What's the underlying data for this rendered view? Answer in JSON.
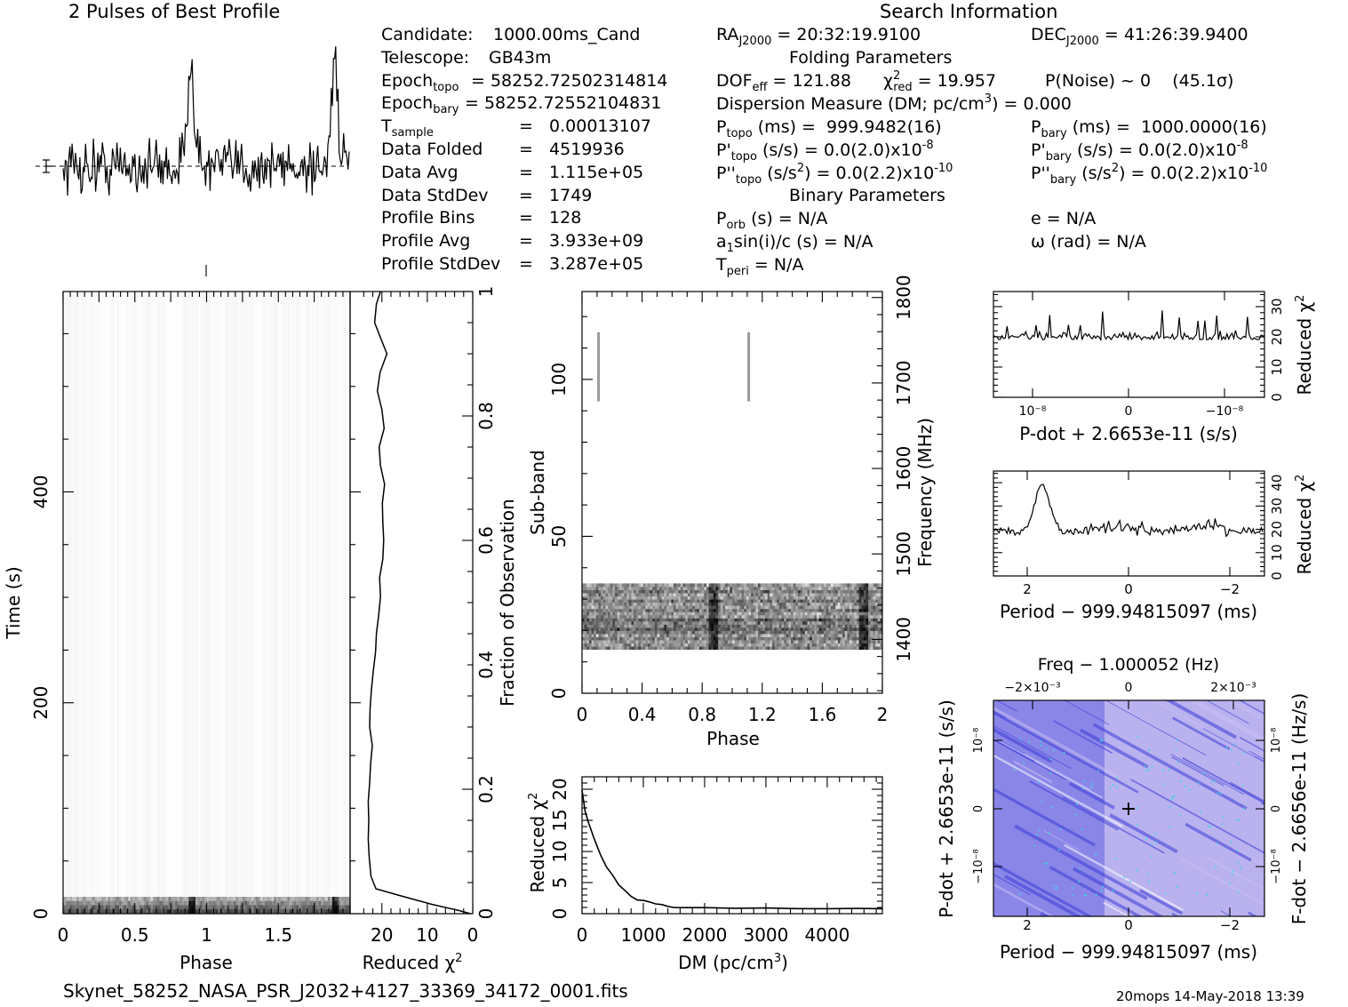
{
  "header": {
    "profile_title": "2 Pulses of Best Profile",
    "search_title": "Search Information",
    "filename": "Skynet_58252_NASA_PSR_J2032+4127_33369_34172_0001.fits",
    "footer_right": "20mops 14-May-2018 13:39"
  },
  "candidate_info": [
    {
      "label": "Candidate:",
      "value": "1000.00ms_Cand"
    },
    {
      "label": "Telescope:",
      "value": "GB43m"
    },
    {
      "label": "Epoch",
      "sub": "topo",
      "value": "= 58252.72502314814"
    },
    {
      "label": "Epoch",
      "sub": "bary",
      "value": "= 58252.72552104831"
    },
    {
      "label": "T",
      "sub": "sample",
      "value": "=   0.00013107"
    },
    {
      "label": "Data Folded",
      "value": "=   4519936"
    },
    {
      "label": "Data Avg",
      "value": "=   1.115e+05"
    },
    {
      "label": "Data StdDev",
      "value": "=   1749"
    },
    {
      "label": "Profile Bins",
      "value": "=   128"
    },
    {
      "label": "Profile Avg",
      "value": "=   3.933e+09"
    },
    {
      "label": "Profile StdDev",
      "value": "=   3.287e+05"
    }
  ],
  "search_info": {
    "ra_label": "RA",
    "ra_sub": "J2000",
    "ra_value": " = 20:32:19.9100",
    "dec_label": "DEC",
    "dec_sub": "J2000",
    "dec_value": " = 41:26:39.9400",
    "folding_title": "Folding Parameters",
    "dof_label": "DOF",
    "dof_sub": "eff",
    "dof_value": " = 121.88",
    "chi_label": "χ",
    "chi_sup": "2",
    "chi_sub": "red",
    "chi_value": " = 19.957",
    "pnoise": "P(Noise) ~ 0    (45.1σ)",
    "dm_line": "Dispersion Measure (DM; pc/cm",
    "dm_sup": "3",
    "dm_value": ") = 0.000",
    "ptopo_label": "P",
    "ptopo_sub": "topo",
    "ptopo_value": " (ms) =  999.9482(16)",
    "pbary_label": "P",
    "pbary_sub": "bary",
    "pbary_value": " (ms) =  1000.0000(16)",
    "pdtopo_label": "P'",
    "pdtopo_sub": "topo",
    "pdtopo_value": " (s/s) = 0.0(2.0)x10",
    "pdtopo_exp": "-8",
    "pdbary_label": "P'",
    "pdbary_sub": "bary",
    "pdbary_value": " (s/s) = 0.0(2.0)x10",
    "pdbary_exp": "-8",
    "pddtopo_label": "P''",
    "pddtopo_sub": "topo",
    "pddtopo_value": " (s/s",
    "pddtopo_unit_sup": "2",
    "pddtopo_value2": ") = 0.0(2.2)x10",
    "pddtopo_exp": "-10",
    "pddbary_label": "P''",
    "pddbary_sub": "bary",
    "pddbary_value": " (s/s",
    "pddbary_unit_sup": "2",
    "pddbary_value2": ") = 0.0(2.2)x10",
    "pddbary_exp": "-10",
    "binary_title": "Binary Parameters",
    "porb_label": "P",
    "porb_sub": "orb",
    "porb_value": " (s) = N/A",
    "e_line": "e = N/A",
    "a1_label": "a",
    "a1_sub": "1",
    "a1_value": "sin(i)/c (s) = N/A",
    "omega_line": "ω (rad) = N/A",
    "tperi_label": "T",
    "tperi_sub": "peri",
    "tperi_value": " = N/A"
  },
  "colors": {
    "ink": "#000000",
    "background": "#ffffff",
    "grey_dark": "#1a1a1a",
    "map_base": "#8a86e8",
    "map_light": "#c9c0f2",
    "map_dark": "#3b3dd8",
    "map_cyan": "#3fd6e0"
  },
  "chart_data": [
    {
      "id": "profile",
      "type": "line",
      "title": "2 Pulses of Best Profile",
      "xlim": [
        0,
        2
      ],
      "peaks_phase": [
        0.89,
        1.89
      ],
      "error_bar": true
    },
    {
      "id": "time_phase",
      "type": "heatmap",
      "xlabel": "Phase",
      "ylabel": "Time (s)",
      "xlim": [
        0,
        2
      ],
      "ylim": [
        0,
        590
      ],
      "x_ticks": [
        "0",
        "0.5",
        "1",
        "1.5"
      ],
      "y_ticks": [
        "0",
        "200",
        "400"
      ],
      "right_ticks": [
        "0",
        "0.2",
        "0.4",
        "0.6",
        "0.8",
        "1"
      ],
      "right_label": "Fraction of Observation",
      "bright_band_time": [
        0,
        16
      ]
    },
    {
      "id": "time_chi2",
      "type": "line",
      "xlabel": "Reduced χ²",
      "x_ticks": [
        "20",
        "10",
        "0"
      ],
      "xlim": [
        27,
        0
      ],
      "points": [
        [
          1.0,
          20.3
        ],
        [
          0.98,
          21.2
        ],
        [
          0.95,
          21.6
        ],
        [
          0.92,
          20.0
        ],
        [
          0.9,
          18.9
        ],
        [
          0.87,
          20.4
        ],
        [
          0.84,
          21.0
        ],
        [
          0.81,
          20.0
        ],
        [
          0.78,
          19.5
        ],
        [
          0.75,
          20.6
        ],
        [
          0.72,
          20.3
        ],
        [
          0.69,
          19.4
        ],
        [
          0.66,
          19.9
        ],
        [
          0.63,
          19.8
        ],
        [
          0.6,
          19.6
        ],
        [
          0.57,
          19.8
        ],
        [
          0.54,
          20.5
        ],
        [
          0.51,
          20.3
        ],
        [
          0.48,
          20.7
        ],
        [
          0.45,
          21.2
        ],
        [
          0.42,
          21.4
        ],
        [
          0.39,
          21.9
        ],
        [
          0.36,
          22.3
        ],
        [
          0.33,
          22.6
        ],
        [
          0.3,
          22.7
        ],
        [
          0.27,
          22.1
        ],
        [
          0.24,
          22.5
        ],
        [
          0.21,
          22.7
        ],
        [
          0.18,
          23.0
        ],
        [
          0.15,
          22.9
        ],
        [
          0.12,
          23.0
        ],
        [
          0.09,
          22.8
        ],
        [
          0.06,
          22.4
        ],
        [
          0.04,
          21.3
        ],
        [
          0.03,
          16.5
        ],
        [
          0.015,
          9.0
        ],
        [
          0.005,
          3.0
        ],
        [
          0.0,
          0.5
        ]
      ]
    },
    {
      "id": "subband_phase",
      "type": "heatmap",
      "xlabel": "Phase",
      "ylabel": "Sub-band",
      "right_label": "Frequency (MHz)",
      "xlim": [
        0,
        2
      ],
      "ylim": [
        0,
        128
      ],
      "x_ticks": [
        "0",
        "0.4",
        "0.8",
        "1.2",
        "1.6",
        "2"
      ],
      "y_ticks": [
        "0",
        "50",
        "100"
      ],
      "freq_ticks": [
        "1400",
        "1500",
        "1600",
        "1700",
        "1800"
      ],
      "freq_range": [
        1337,
        1807
      ],
      "active_subbands": [
        14,
        35
      ],
      "rfi_line_subbands": [
        93,
        115
      ],
      "rfi_line_phases": [
        0.11,
        1.11
      ]
    },
    {
      "id": "dm_chi2",
      "type": "line",
      "xlabel": "DM (pc/cm³)",
      "ylabel": "Reduced χ²",
      "xlim": [
        0,
        4900
      ],
      "ylim": [
        0,
        22
      ],
      "x_ticks": [
        "0",
        "1000",
        "2000",
        "3000",
        "4000"
      ],
      "y_ticks": [
        "0",
        "5",
        "10",
        "15",
        "20"
      ],
      "points": [
        [
          0,
          19.9
        ],
        [
          50,
          16.5
        ],
        [
          100,
          14.8
        ],
        [
          200,
          12.0
        ],
        [
          300,
          9.5
        ],
        [
          400,
          7.5
        ],
        [
          500,
          6.2
        ],
        [
          600,
          4.6
        ],
        [
          700,
          3.7
        ],
        [
          800,
          2.8
        ],
        [
          900,
          2.2
        ],
        [
          1000,
          2.1
        ],
        [
          1100,
          2.0
        ],
        [
          1200,
          1.8
        ],
        [
          1300,
          1.5
        ],
        [
          1400,
          1.2
        ],
        [
          1500,
          1.0
        ],
        [
          1700,
          1.0
        ],
        [
          2000,
          0.95
        ],
        [
          2500,
          0.9
        ],
        [
          3000,
          0.85
        ],
        [
          3500,
          0.85
        ],
        [
          4000,
          0.8
        ],
        [
          4500,
          0.85
        ],
        [
          4900,
          0.8
        ]
      ]
    },
    {
      "id": "pdot_chi2",
      "type": "line",
      "xlabel": "P-dot + 2.6653e-11 (s/s)",
      "ylabel": "Reduced χ²",
      "ylim": [
        0,
        35
      ],
      "x_ticks": [
        "10⁻⁸",
        "0",
        "−10⁻⁸"
      ],
      "y_ticks": [
        "0",
        "10",
        "20",
        "30"
      ],
      "baseline": 20
    },
    {
      "id": "period_chi2",
      "type": "line",
      "xlabel": "Period − 999.94815097 (ms)",
      "ylabel": "Reduced χ²",
      "ylim": [
        0,
        45
      ],
      "x_ticks": [
        "2",
        "0",
        "−2"
      ],
      "y_ticks": [
        "0",
        "10",
        "20",
        "30",
        "40"
      ],
      "peak_x": 1.7,
      "peak_value": 42
    },
    {
      "id": "period_pdot_map",
      "type": "heatmap",
      "title": "Freq − 1.000052 (Hz)",
      "xlabel": "Period − 999.94815097 (ms)",
      "ylabel": "P-dot + 2.6653e-11 (s/s)",
      "right_label": "F-dot − 2.6656e-11 (Hz/s)",
      "x_ticks": [
        "2",
        "0",
        "−2"
      ],
      "top_ticks": [
        "−2×10⁻³",
        "0",
        "2×10⁻³"
      ],
      "y_ticks": [
        "10⁻⁸",
        "0",
        "−10⁻⁸"
      ],
      "right_ticks": [
        "−10⁻⁸",
        "0",
        "10⁻⁸"
      ],
      "best_fit": [
        0,
        0
      ]
    }
  ],
  "labels": {
    "phase": "Phase",
    "time": "Time (s)",
    "reduced_chi2": "Reduced χ",
    "chi_sup": "2",
    "fraction": "Fraction of Observation",
    "subband": "Sub-band",
    "frequency": "Frequency (MHz)",
    "dm": "DM (pc/cm",
    "dm_sup": "3",
    "dm_close": ")",
    "pdot_axis": "P-dot + 2.6653e-11 (s/s)",
    "period_axis": "Period − 999.94815097 (ms)",
    "freq_axis": "Freq − 1.000052 (Hz)",
    "pdot_vert": "P-dot + 2.6653e-11 (s/s)",
    "fdot_vert": "F-dot − 2.6656e-11 (Hz/s)"
  }
}
